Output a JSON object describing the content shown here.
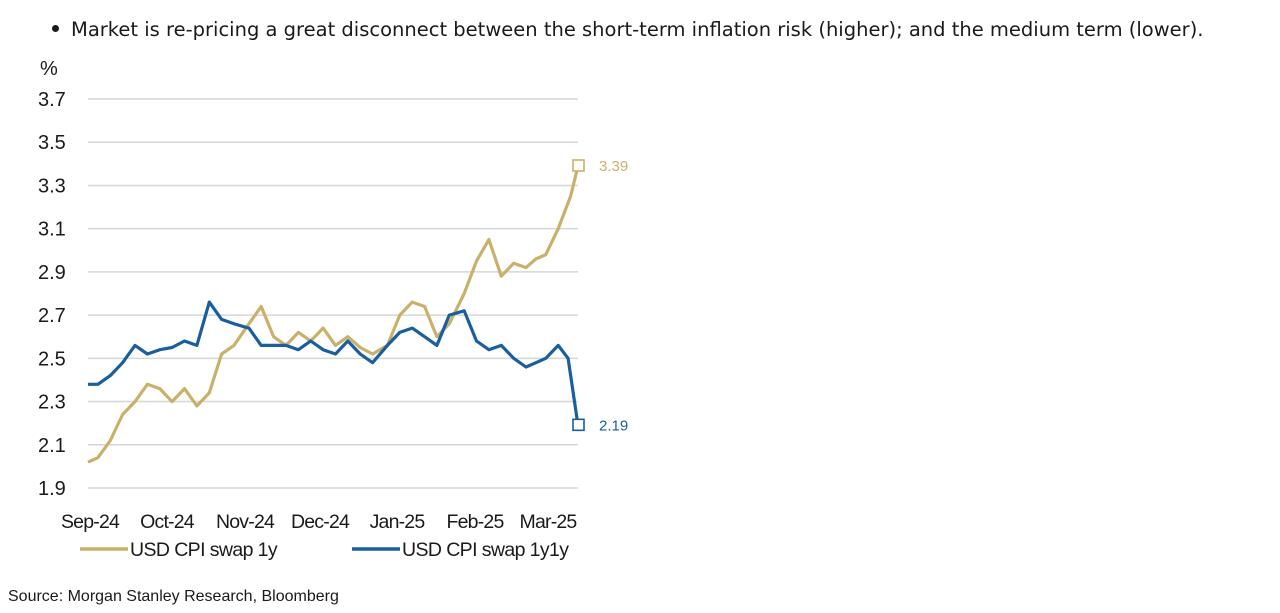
{
  "bullet": "Market is re-pricing a great disconnect between the short-term inflation risk (higher); and the medium term (lower).",
  "source": "Source: Morgan Stanley Research, Bloomberg",
  "chart_data": {
    "type": "line",
    "yunit": "%",
    "ylim": [
      1.9,
      3.7
    ],
    "yticks": [
      "3.7",
      "3.5",
      "3.3",
      "3.1",
      "2.9",
      "2.7",
      "2.5",
      "2.3",
      "2.1",
      "1.9"
    ],
    "xticks": [
      "Sep-24",
      "Oct-24",
      "Nov-24",
      "Dec-24",
      "Jan-25",
      "Feb-25",
      "Mar-25"
    ],
    "grid": true,
    "legend_position": "bottom",
    "series": [
      {
        "name": "USD CPI swap 1y",
        "color": "#c9b06b",
        "end_label": "3.39",
        "x": [
          "2024-09-01",
          "2024-09-05",
          "2024-09-10",
          "2024-09-15",
          "2024-09-20",
          "2024-09-25",
          "2024-09-30",
          "2024-10-05",
          "2024-10-10",
          "2024-10-15",
          "2024-10-20",
          "2024-10-25",
          "2024-10-30",
          "2024-11-05",
          "2024-11-10",
          "2024-11-15",
          "2024-11-20",
          "2024-11-25",
          "2024-11-30",
          "2024-12-05",
          "2024-12-10",
          "2024-12-15",
          "2024-12-20",
          "2024-12-25",
          "2024-12-31",
          "2025-01-05",
          "2025-01-10",
          "2025-01-15",
          "2025-01-20",
          "2025-01-25",
          "2025-01-31",
          "2025-02-05",
          "2025-02-10",
          "2025-02-15",
          "2025-02-20",
          "2025-02-25",
          "2025-03-01",
          "2025-03-05",
          "2025-03-10",
          "2025-03-15",
          "2025-03-18"
        ],
        "values": [
          2.02,
          2.04,
          2.12,
          2.24,
          2.3,
          2.38,
          2.36,
          2.3,
          2.36,
          2.28,
          2.34,
          2.52,
          2.56,
          2.66,
          2.74,
          2.6,
          2.56,
          2.62,
          2.58,
          2.64,
          2.56,
          2.6,
          2.55,
          2.52,
          2.56,
          2.7,
          2.76,
          2.74,
          2.6,
          2.66,
          2.8,
          2.95,
          3.05,
          2.88,
          2.94,
          2.92,
          2.96,
          2.98,
          3.1,
          3.25,
          3.39
        ]
      },
      {
        "name": "USD CPI swap 1y1y",
        "color": "#1a5e9e",
        "end_label": "2.19",
        "x": [
          "2024-09-01",
          "2024-09-05",
          "2024-09-10",
          "2024-09-15",
          "2024-09-20",
          "2024-09-25",
          "2024-09-30",
          "2024-10-05",
          "2024-10-10",
          "2024-10-15",
          "2024-10-20",
          "2024-10-25",
          "2024-10-30",
          "2024-11-05",
          "2024-11-10",
          "2024-11-15",
          "2024-11-20",
          "2024-11-25",
          "2024-11-30",
          "2024-12-05",
          "2024-12-10",
          "2024-12-15",
          "2024-12-20",
          "2024-12-25",
          "2024-12-31",
          "2025-01-05",
          "2025-01-10",
          "2025-01-15",
          "2025-01-20",
          "2025-01-25",
          "2025-01-31",
          "2025-02-05",
          "2025-02-10",
          "2025-02-15",
          "2025-02-20",
          "2025-02-25",
          "2025-03-01",
          "2025-03-05",
          "2025-03-10",
          "2025-03-14",
          "2025-03-18"
        ],
        "values": [
          2.38,
          2.38,
          2.42,
          2.48,
          2.56,
          2.52,
          2.54,
          2.55,
          2.58,
          2.56,
          2.76,
          2.68,
          2.66,
          2.64,
          2.56,
          2.56,
          2.56,
          2.54,
          2.58,
          2.54,
          2.52,
          2.58,
          2.52,
          2.48,
          2.56,
          2.62,
          2.64,
          2.6,
          2.56,
          2.7,
          2.72,
          2.58,
          2.54,
          2.56,
          2.5,
          2.46,
          2.48,
          2.5,
          2.56,
          2.5,
          2.19
        ]
      }
    ]
  }
}
